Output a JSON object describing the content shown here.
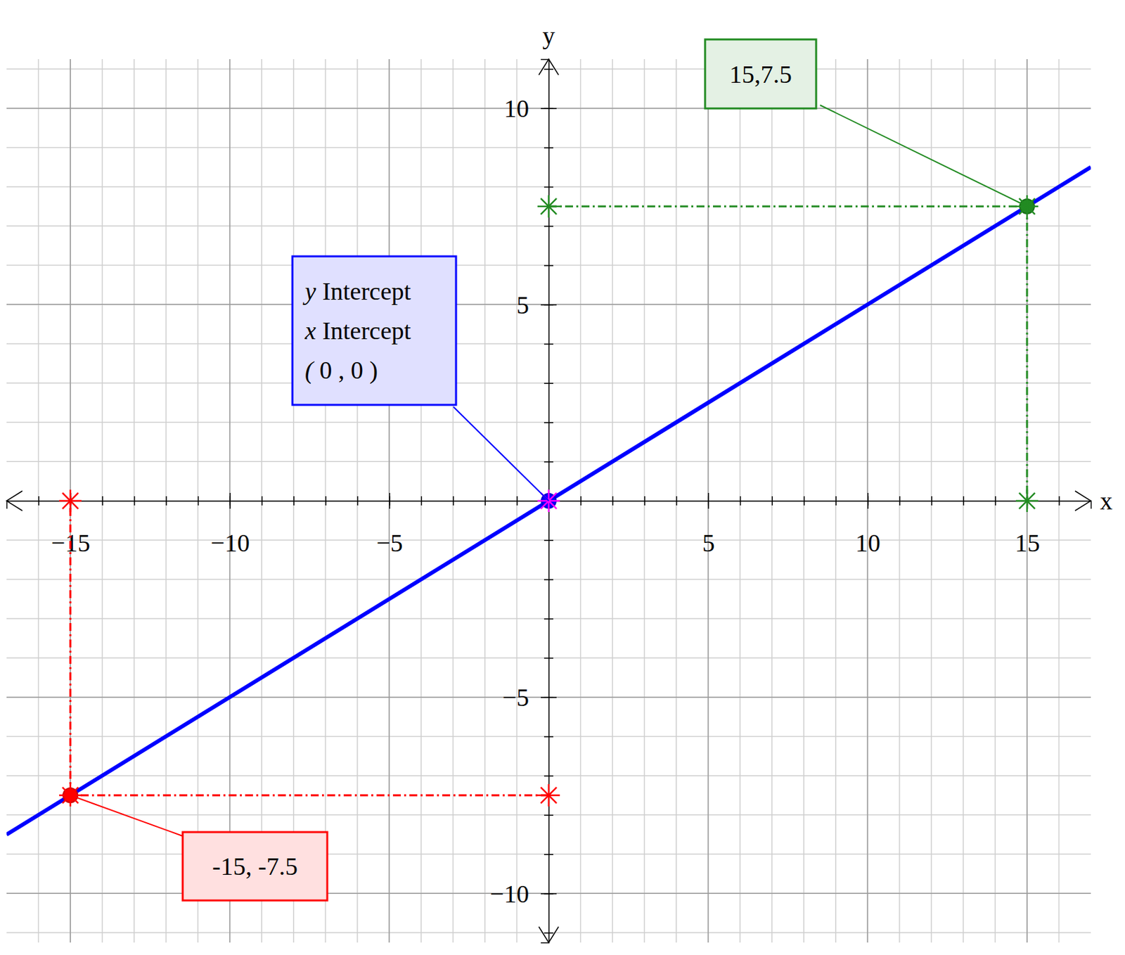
{
  "chart_data": {
    "type": "line",
    "xlabel": "x",
    "ylabel": "y",
    "x": [
      -17,
      -15,
      0,
      15,
      17
    ],
    "series": [
      {
        "color": "#0000ff",
        "values": [
          -8.5,
          -7.5,
          0,
          7.5,
          8.5
        ]
      }
    ],
    "xlim": [
      -17,
      17
    ],
    "ylim": [
      -11.25,
      11.25
    ],
    "xticks": [
      {
        "value": -15,
        "label": "−15"
      },
      {
        "value": -10,
        "label": "−10"
      },
      {
        "value": -5,
        "label": "−5"
      },
      5,
      10,
      15
    ],
    "yticks": [
      {
        "value": -10,
        "label": "−10"
      },
      {
        "value": -5,
        "label": "−5"
      },
      5,
      10
    ],
    "xticks_minor": [
      -16,
      -15,
      -14,
      -13,
      -12,
      -11,
      -10,
      -9,
      -8,
      -7,
      -6,
      -5,
      -4,
      -3,
      -2,
      -1,
      0,
      1,
      2,
      3,
      4,
      5,
      6,
      7,
      8,
      9,
      10,
      11,
      12,
      13,
      14,
      15,
      16
    ],
    "yticks_minor": [
      -11,
      -10,
      -9,
      -8,
      -7,
      -6,
      -5,
      -4,
      -3,
      -2,
      -1,
      0,
      1,
      2,
      3,
      4,
      5,
      6,
      7,
      8,
      9,
      10,
      11
    ],
    "grid": true,
    "annotations": [
      {
        "x": 15,
        "y": 7.5,
        "label": [
          "15,7.5"
        ],
        "color": "#228b22"
      },
      {
        "x": 0,
        "y": 0,
        "label": [
          "y Intercept",
          "x Intercept",
          "( 0 , 0 )"
        ],
        "color": "#0000ff"
      },
      {
        "x": -15,
        "y": -7.5,
        "label": [
          "-15, -7.5"
        ],
        "color": "#ff0000"
      }
    ]
  }
}
